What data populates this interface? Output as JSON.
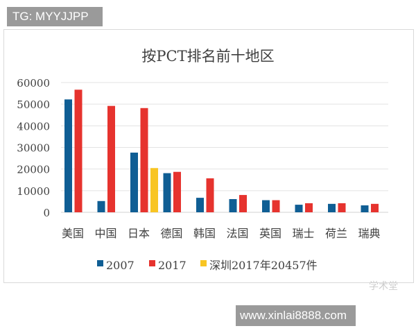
{
  "watermarks": {
    "top_left": "TG: MYYJJPP",
    "bottom_right": "www.xinlai8888.com",
    "faint": "学术堂"
  },
  "colors": {
    "s2007": "#0f5e94",
    "s2017": "#e6332e",
    "shenzhen": "#f8c523",
    "grid": "#e3e3e3",
    "text": "#404040"
  },
  "chart_data": {
    "type": "bar",
    "title": "按PCT排名前十地区",
    "xlabel": "",
    "ylabel": "",
    "ylim": [
      0,
      60000
    ],
    "yticks": [
      0,
      10000,
      20000,
      30000,
      40000,
      50000,
      60000
    ],
    "grid": true,
    "legend_position": "bottom",
    "categories": [
      "美国",
      "中国",
      "日本",
      "德国",
      "韩国",
      "法国",
      "英国",
      "瑞士",
      "荷兰",
      "瑞典"
    ],
    "series": [
      {
        "name": "2007",
        "values": [
          52200,
          5200,
          27600,
          18100,
          6700,
          6100,
          5600,
          3500,
          3900,
          3200
        ]
      },
      {
        "name": "2017",
        "values": [
          56700,
          49200,
          48200,
          18700,
          15700,
          8000,
          5600,
          4200,
          4200,
          3900
        ]
      },
      {
        "name": "深圳2017年20457件",
        "values": [
          null,
          null,
          20457,
          null,
          null,
          null,
          null,
          null,
          null,
          null
        ]
      }
    ]
  }
}
